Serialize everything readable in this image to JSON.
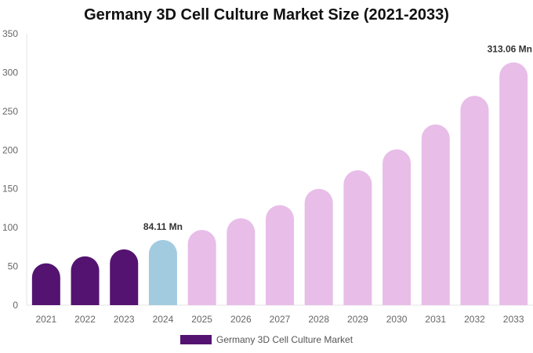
{
  "chart_data": {
    "type": "bar",
    "title": "Germany 3D Cell Culture Market Size (2021-2033)",
    "categories": [
      "2021",
      "2022",
      "2023",
      "2024",
      "2025",
      "2026",
      "2027",
      "2028",
      "2029",
      "2030",
      "2031",
      "2032",
      "2033"
    ],
    "series": [
      {
        "name": "Germany 3D Cell Culture Market",
        "values": [
          54,
          63,
          72,
          84.11,
          97,
          112,
          129,
          150,
          174,
          201,
          233,
          270,
          313.06
        ]
      }
    ],
    "data_labels": [
      {
        "category": "2024",
        "text": "84.11 Mn"
      },
      {
        "category": "2033",
        "text": "313.06 Mn"
      }
    ],
    "yticks": [
      "0",
      "50",
      "100",
      "150",
      "200",
      "250",
      "300",
      "350"
    ],
    "ylim": [
      0,
      350
    ],
    "grid": false,
    "legend": "bottom",
    "colors": {
      "historic": "#541370",
      "current": "#a3cbe0",
      "forecast": "#e8bde8"
    }
  }
}
